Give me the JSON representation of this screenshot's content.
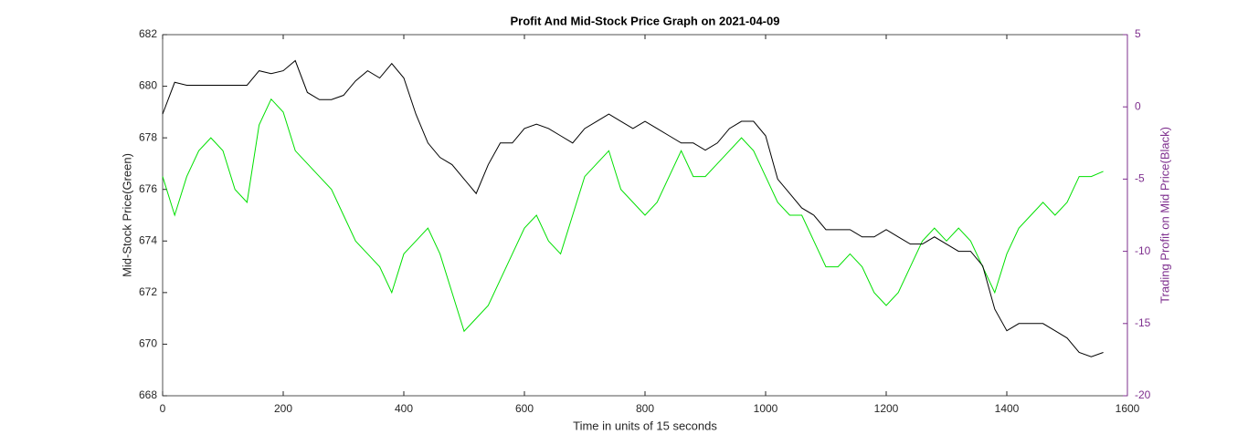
{
  "chart_data": {
    "type": "line",
    "title": "Profit And Mid-Stock Price Graph on 2021-04-09",
    "xlabel": "Time in units of 15 seconds",
    "ylabel": "Mid-Stock Price(Green)",
    "y2label": "Trading Profit on Mid Price(Black)",
    "x": [
      0,
      20,
      40,
      60,
      80,
      100,
      120,
      140,
      160,
      180,
      200,
      220,
      240,
      260,
      280,
      300,
      320,
      340,
      360,
      380,
      400,
      420,
      440,
      460,
      480,
      500,
      520,
      540,
      560,
      580,
      600,
      620,
      640,
      660,
      680,
      700,
      720,
      740,
      760,
      780,
      800,
      820,
      840,
      860,
      880,
      900,
      920,
      940,
      960,
      980,
      1000,
      1020,
      1040,
      1060,
      1080,
      1100,
      1120,
      1140,
      1160,
      1180,
      1200,
      1220,
      1240,
      1260,
      1280,
      1300,
      1320,
      1340,
      1360,
      1380,
      1400,
      1420,
      1440,
      1460,
      1480,
      1500,
      1520,
      1540,
      1560
    ],
    "series": [
      {
        "color": "#00e000",
        "values": [
          676.5,
          675,
          676.5,
          677.5,
          678,
          677.5,
          676,
          675.5,
          678.5,
          679.5,
          679,
          677.5,
          677,
          676.5,
          676,
          675,
          674,
          673.5,
          673,
          672,
          673.5,
          674,
          674.5,
          673.5,
          672,
          670.5,
          671,
          671.5,
          672.5,
          673.5,
          674.5,
          675,
          674,
          673.5,
          675,
          676.5,
          677,
          677.5,
          676,
          675.5,
          675,
          675.5,
          676.5,
          677.5,
          676.5,
          676.5,
          677,
          677.5,
          678,
          677.5,
          676.5,
          675.5,
          675,
          675,
          674,
          673,
          673,
          673.5,
          673,
          672,
          671.5,
          672,
          673,
          674,
          674.5,
          674,
          674.5,
          674,
          673,
          672,
          673.5,
          674.5,
          675,
          675.5,
          675,
          675.5,
          676.5,
          676.5,
          676.7
        ]
      },
      {
        "color": "#000000",
        "axis": "y2",
        "values": [
          -0.5,
          1.7,
          1.5,
          1.5,
          1.5,
          1.5,
          1.5,
          1.5,
          2.5,
          2.3,
          2.5,
          3.2,
          1,
          0.5,
          0.5,
          0.8,
          1.8,
          2.5,
          2,
          3,
          2,
          -0.5,
          -2.5,
          -3.5,
          -4,
          -5,
          -6,
          -4,
          -2.5,
          -2.5,
          -1.5,
          -1.2,
          -1.5,
          -2,
          -2.5,
          -1.5,
          -1,
          -0.5,
          -1,
          -1.5,
          -1,
          -1.5,
          -2,
          -2.5,
          -2.5,
          -3,
          -2.5,
          -1.5,
          -1,
          -1,
          -2,
          -5,
          -6,
          -7,
          -7.5,
          -8.5,
          -8.5,
          -8.5,
          -9,
          -9,
          -8.5,
          -9,
          -9.5,
          -9.5,
          -9,
          -9.5,
          -10,
          -10,
          -11,
          -14,
          -15.5,
          -15,
          -15,
          -15,
          -15.5,
          -16,
          -17,
          -17.3,
          -17
        ]
      }
    ],
    "xlim": [
      0,
      1600
    ],
    "xticks": [
      0,
      200,
      400,
      600,
      800,
      1000,
      1200,
      1400,
      1600
    ],
    "ylim": [
      668,
      682
    ],
    "yticks": [
      668,
      670,
      672,
      674,
      676,
      678,
      680,
      682
    ],
    "y2lim": [
      -20,
      5
    ],
    "y2ticks": [
      -20,
      -15,
      -10,
      -5,
      0,
      5
    ],
    "y2color": "#7e2f8e"
  }
}
